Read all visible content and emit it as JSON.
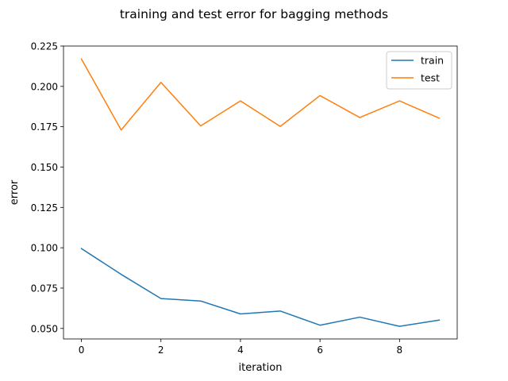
{
  "chart_data": {
    "type": "line",
    "title": "training and test error for bagging methods",
    "xlabel": "iteration",
    "ylabel": "error",
    "xlim": [
      -0.45,
      9.45
    ],
    "ylim": [
      0.0435,
      0.225
    ],
    "xticks": [
      0,
      2,
      4,
      6,
      8
    ],
    "xtick_labels": [
      "0",
      "2",
      "4",
      "6",
      "8"
    ],
    "yticks": [
      0.05,
      0.075,
      0.1,
      0.125,
      0.15,
      0.175,
      0.2,
      0.225
    ],
    "ytick_labels": [
      "0.050",
      "0.075",
      "0.100",
      "0.125",
      "0.150",
      "0.175",
      "0.200",
      "0.225"
    ],
    "grid": false,
    "legend_position": "top-right",
    "x": [
      0,
      1,
      2,
      3,
      4,
      5,
      6,
      7,
      8,
      9
    ],
    "series": [
      {
        "name": "train",
        "color": "#1f77b4",
        "values": [
          0.0995,
          0.0835,
          0.0685,
          0.067,
          0.059,
          0.0608,
          0.052,
          0.057,
          0.0513,
          0.0552
        ]
      },
      {
        "name": "test",
        "color": "#ff7f0e",
        "values": [
          0.217,
          0.173,
          0.2025,
          0.1755,
          0.191,
          0.1752,
          0.1943,
          0.1807,
          0.191,
          0.1803
        ]
      }
    ]
  }
}
